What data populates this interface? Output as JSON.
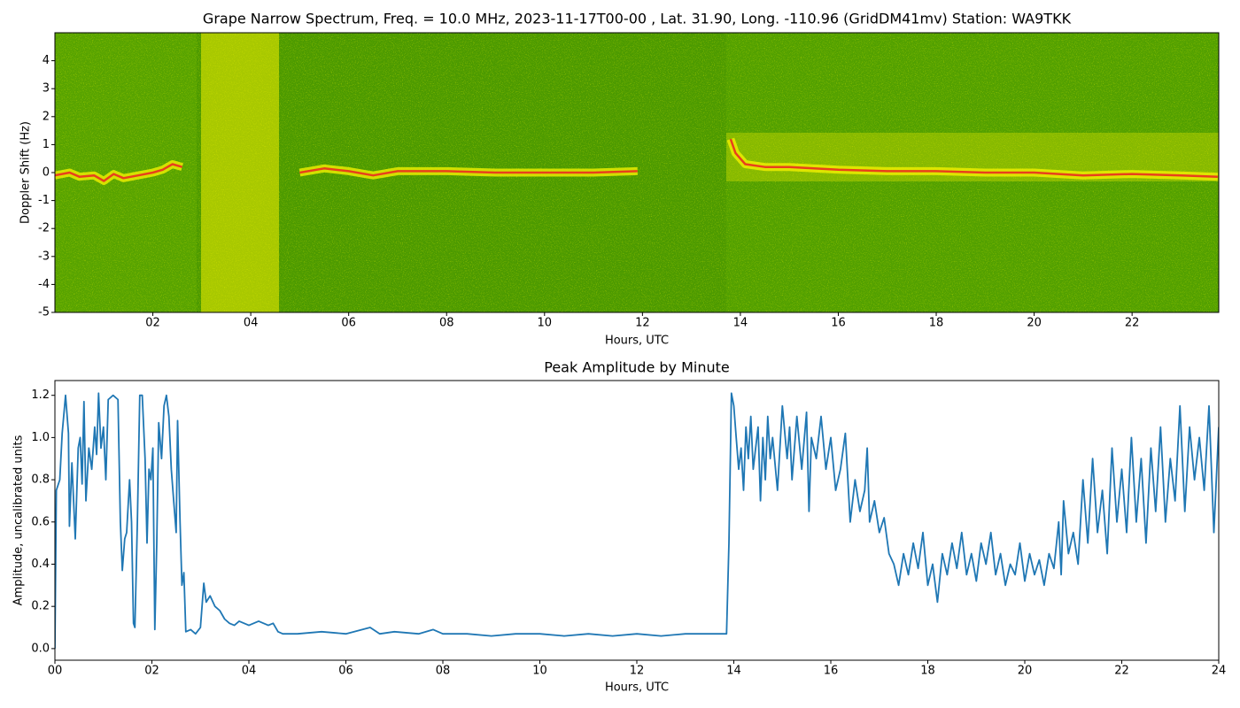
{
  "chart_data": [
    {
      "type": "spectrogram",
      "title": "Grape Narrow Spectrum, Freq. = 10.0 MHz, 2023-11-17T00-00 , Lat.  31.90, Long. -110.96 (GridDM41mv) Station: WA9TKK",
      "x_label": "Hours, UTC",
      "y_label": "Doppler Shift (Hz)",
      "x": [
        0,
        0.3,
        0.5,
        0.8,
        1.0,
        1.2,
        1.4,
        1.7,
        2.0,
        2.2,
        2.4,
        2.6,
        2.7,
        5.0,
        5.5,
        6.0,
        6.5,
        7.0,
        8.0,
        9.0,
        10.0,
        11.0,
        11.9,
        12.0,
        13.8,
        13.9,
        14.1,
        14.5,
        15.0,
        16.0,
        17.0,
        18.0,
        19.0,
        20.0,
        21.0,
        22.0,
        23.0,
        23.75
      ],
      "values": [
        -0.1,
        0.0,
        -0.15,
        -0.1,
        -0.3,
        -0.05,
        -0.2,
        -0.1,
        0.0,
        0.1,
        0.3,
        0.2,
        null,
        0.0,
        0.15,
        0.05,
        -0.1,
        0.05,
        0.05,
        0.0,
        0.0,
        0.0,
        0.05,
        null,
        1.2,
        0.7,
        0.3,
        0.2,
        0.2,
        0.1,
        0.05,
        0.05,
        0.0,
        0.0,
        -0.1,
        -0.05,
        -0.1,
        -0.15
      ],
      "color": "#e8401c",
      "background_color": "#4c9a00",
      "xlim": [
        0,
        23.77
      ],
      "ylim": [
        -5,
        5
      ],
      "xticks": [
        {
          "value": 2,
          "label": "02"
        },
        {
          "value": 4,
          "label": "04"
        },
        {
          "value": 6,
          "label": "06"
        },
        {
          "value": 8,
          "label": "08"
        },
        10,
        12,
        14,
        16,
        18,
        20,
        22
      ],
      "yticks": [
        -5,
        -4,
        -3,
        -2,
        -1,
        0,
        1,
        2,
        3,
        4
      ]
    },
    {
      "type": "line",
      "title": "Peak Amplitude by Minute",
      "x_label": "Hours, UTC",
      "y_label": "Amplitude, uncalibrated units",
      "color": "#1f77b4",
      "x": [
        0,
        0.03,
        0.1,
        0.15,
        0.22,
        0.28,
        0.3,
        0.35,
        0.42,
        0.48,
        0.52,
        0.56,
        0.6,
        0.64,
        0.7,
        0.76,
        0.82,
        0.86,
        0.9,
        0.95,
        1.0,
        1.05,
        1.1,
        1.2,
        1.3,
        1.35,
        1.39,
        1.44,
        1.48,
        1.54,
        1.58,
        1.62,
        1.65,
        1.7,
        1.75,
        1.8,
        1.86,
        1.9,
        1.94,
        1.98,
        2.02,
        2.06,
        2.1,
        2.14,
        2.2,
        2.25,
        2.3,
        2.35,
        2.4,
        2.45,
        2.5,
        2.53,
        2.58,
        2.62,
        2.66,
        2.7,
        2.8,
        2.9,
        3.0,
        3.07,
        3.12,
        3.2,
        3.3,
        3.4,
        3.5,
        3.6,
        3.7,
        3.8,
        4.0,
        4.2,
        4.4,
        4.5,
        4.6,
        4.7,
        5.0,
        5.5,
        6.0,
        6.5,
        6.7,
        7.0,
        7.5,
        7.8,
        8.0,
        8.5,
        9.0,
        9.5,
        10.0,
        10.5,
        11.0,
        11.5,
        12.0,
        12.5,
        13.0,
        13.5,
        13.85,
        13.9,
        13.95,
        14.0,
        14.05,
        14.1,
        14.15,
        14.2,
        14.25,
        14.3,
        14.35,
        14.4,
        14.5,
        14.55,
        14.6,
        14.65,
        14.7,
        14.75,
        14.8,
        14.9,
        15.0,
        15.1,
        15.15,
        15.2,
        15.3,
        15.4,
        15.5,
        15.55,
        15.6,
        15.7,
        15.8,
        15.9,
        16.0,
        16.1,
        16.2,
        16.3,
        16.4,
        16.5,
        16.6,
        16.7,
        16.75,
        16.8,
        16.9,
        17.0,
        17.1,
        17.2,
        17.3,
        17.4,
        17.5,
        17.6,
        17.7,
        17.8,
        17.9,
        18.0,
        18.1,
        18.2,
        18.3,
        18.4,
        18.5,
        18.6,
        18.7,
        18.8,
        18.9,
        19.0,
        19.1,
        19.2,
        19.3,
        19.4,
        19.5,
        19.6,
        19.7,
        19.8,
        19.9,
        20.0,
        20.1,
        20.2,
        20.3,
        20.4,
        20.5,
        20.6,
        20.7,
        20.75,
        20.8,
        20.9,
        21.0,
        21.1,
        21.2,
        21.3,
        21.4,
        21.5,
        21.6,
        21.7,
        21.8,
        21.9,
        22.0,
        22.1,
        22.2,
        22.3,
        22.4,
        22.5,
        22.6,
        22.7,
        22.8,
        22.9,
        23.0,
        23.1,
        23.2,
        23.3,
        23.4,
        23.5,
        23.6,
        23.7,
        23.8,
        23.9,
        24.0
      ],
      "values": [
        0.0,
        0.75,
        0.8,
        1.02,
        1.2,
        1.02,
        0.58,
        0.88,
        0.52,
        0.95,
        1.0,
        0.78,
        1.17,
        0.7,
        0.95,
        0.85,
        1.05,
        0.92,
        1.21,
        0.95,
        1.05,
        0.8,
        1.18,
        1.2,
        1.18,
        0.6,
        0.37,
        0.52,
        0.55,
        0.8,
        0.6,
        0.12,
        0.1,
        0.6,
        1.2,
        1.2,
        0.9,
        0.5,
        0.85,
        0.8,
        0.95,
        0.09,
        0.5,
        1.07,
        0.9,
        1.15,
        1.2,
        1.1,
        0.85,
        0.7,
        0.55,
        1.08,
        0.6,
        0.3,
        0.36,
        0.08,
        0.09,
        0.07,
        0.1,
        0.31,
        0.22,
        0.25,
        0.2,
        0.18,
        0.14,
        0.12,
        0.11,
        0.13,
        0.11,
        0.13,
        0.11,
        0.12,
        0.08,
        0.07,
        0.07,
        0.08,
        0.07,
        0.1,
        0.07,
        0.08,
        0.07,
        0.09,
        0.07,
        0.07,
        0.06,
        0.07,
        0.07,
        0.06,
        0.07,
        0.06,
        0.07,
        0.06,
        0.07,
        0.07,
        0.07,
        0.5,
        1.21,
        1.15,
        1.0,
        0.85,
        0.95,
        0.75,
        1.05,
        0.9,
        1.1,
        0.85,
        1.05,
        0.7,
        1.0,
        0.8,
        1.1,
        0.9,
        1.0,
        0.75,
        1.15,
        0.9,
        1.05,
        0.8,
        1.1,
        0.85,
        1.12,
        0.65,
        1.0,
        0.9,
        1.1,
        0.85,
        1.0,
        0.75,
        0.85,
        1.02,
        0.6,
        0.8,
        0.65,
        0.75,
        0.95,
        0.6,
        0.7,
        0.55,
        0.62,
        0.45,
        0.4,
        0.3,
        0.45,
        0.35,
        0.5,
        0.38,
        0.55,
        0.3,
        0.4,
        0.22,
        0.45,
        0.35,
        0.5,
        0.38,
        0.55,
        0.35,
        0.45,
        0.32,
        0.5,
        0.4,
        0.55,
        0.35,
        0.45,
        0.3,
        0.4,
        0.35,
        0.5,
        0.32,
        0.45,
        0.35,
        0.42,
        0.3,
        0.45,
        0.38,
        0.6,
        0.35,
        0.7,
        0.45,
        0.55,
        0.4,
        0.8,
        0.5,
        0.9,
        0.55,
        0.75,
        0.45,
        0.95,
        0.6,
        0.85,
        0.55,
        1.0,
        0.6,
        0.9,
        0.5,
        0.95,
        0.65,
        1.05,
        0.6,
        0.9,
        0.7,
        1.15,
        0.65,
        1.05,
        0.8,
        1.0,
        0.75,
        1.15,
        0.55,
        1.05
      ],
      "xlim": [
        0,
        24
      ],
      "ylim": [
        -0.055,
        1.27
      ],
      "xticks": [
        {
          "value": 0,
          "label": "00"
        },
        {
          "value": 2,
          "label": "02"
        },
        {
          "value": 4,
          "label": "04"
        },
        {
          "value": 6,
          "label": "06"
        },
        {
          "value": 8,
          "label": "08"
        },
        10,
        12,
        14,
        16,
        18,
        20,
        22,
        24
      ],
      "yticks": [
        {
          "value": 0,
          "label": "0.0"
        },
        {
          "value": 0.2,
          "label": "0.2"
        },
        {
          "value": 0.4,
          "label": "0.4"
        },
        {
          "value": 0.6,
          "label": "0.6"
        },
        {
          "value": 0.8,
          "label": "0.8"
        },
        {
          "value": 1.0,
          "label": "1.0"
        },
        {
          "value": 1.2,
          "label": "1.2"
        }
      ]
    }
  ]
}
